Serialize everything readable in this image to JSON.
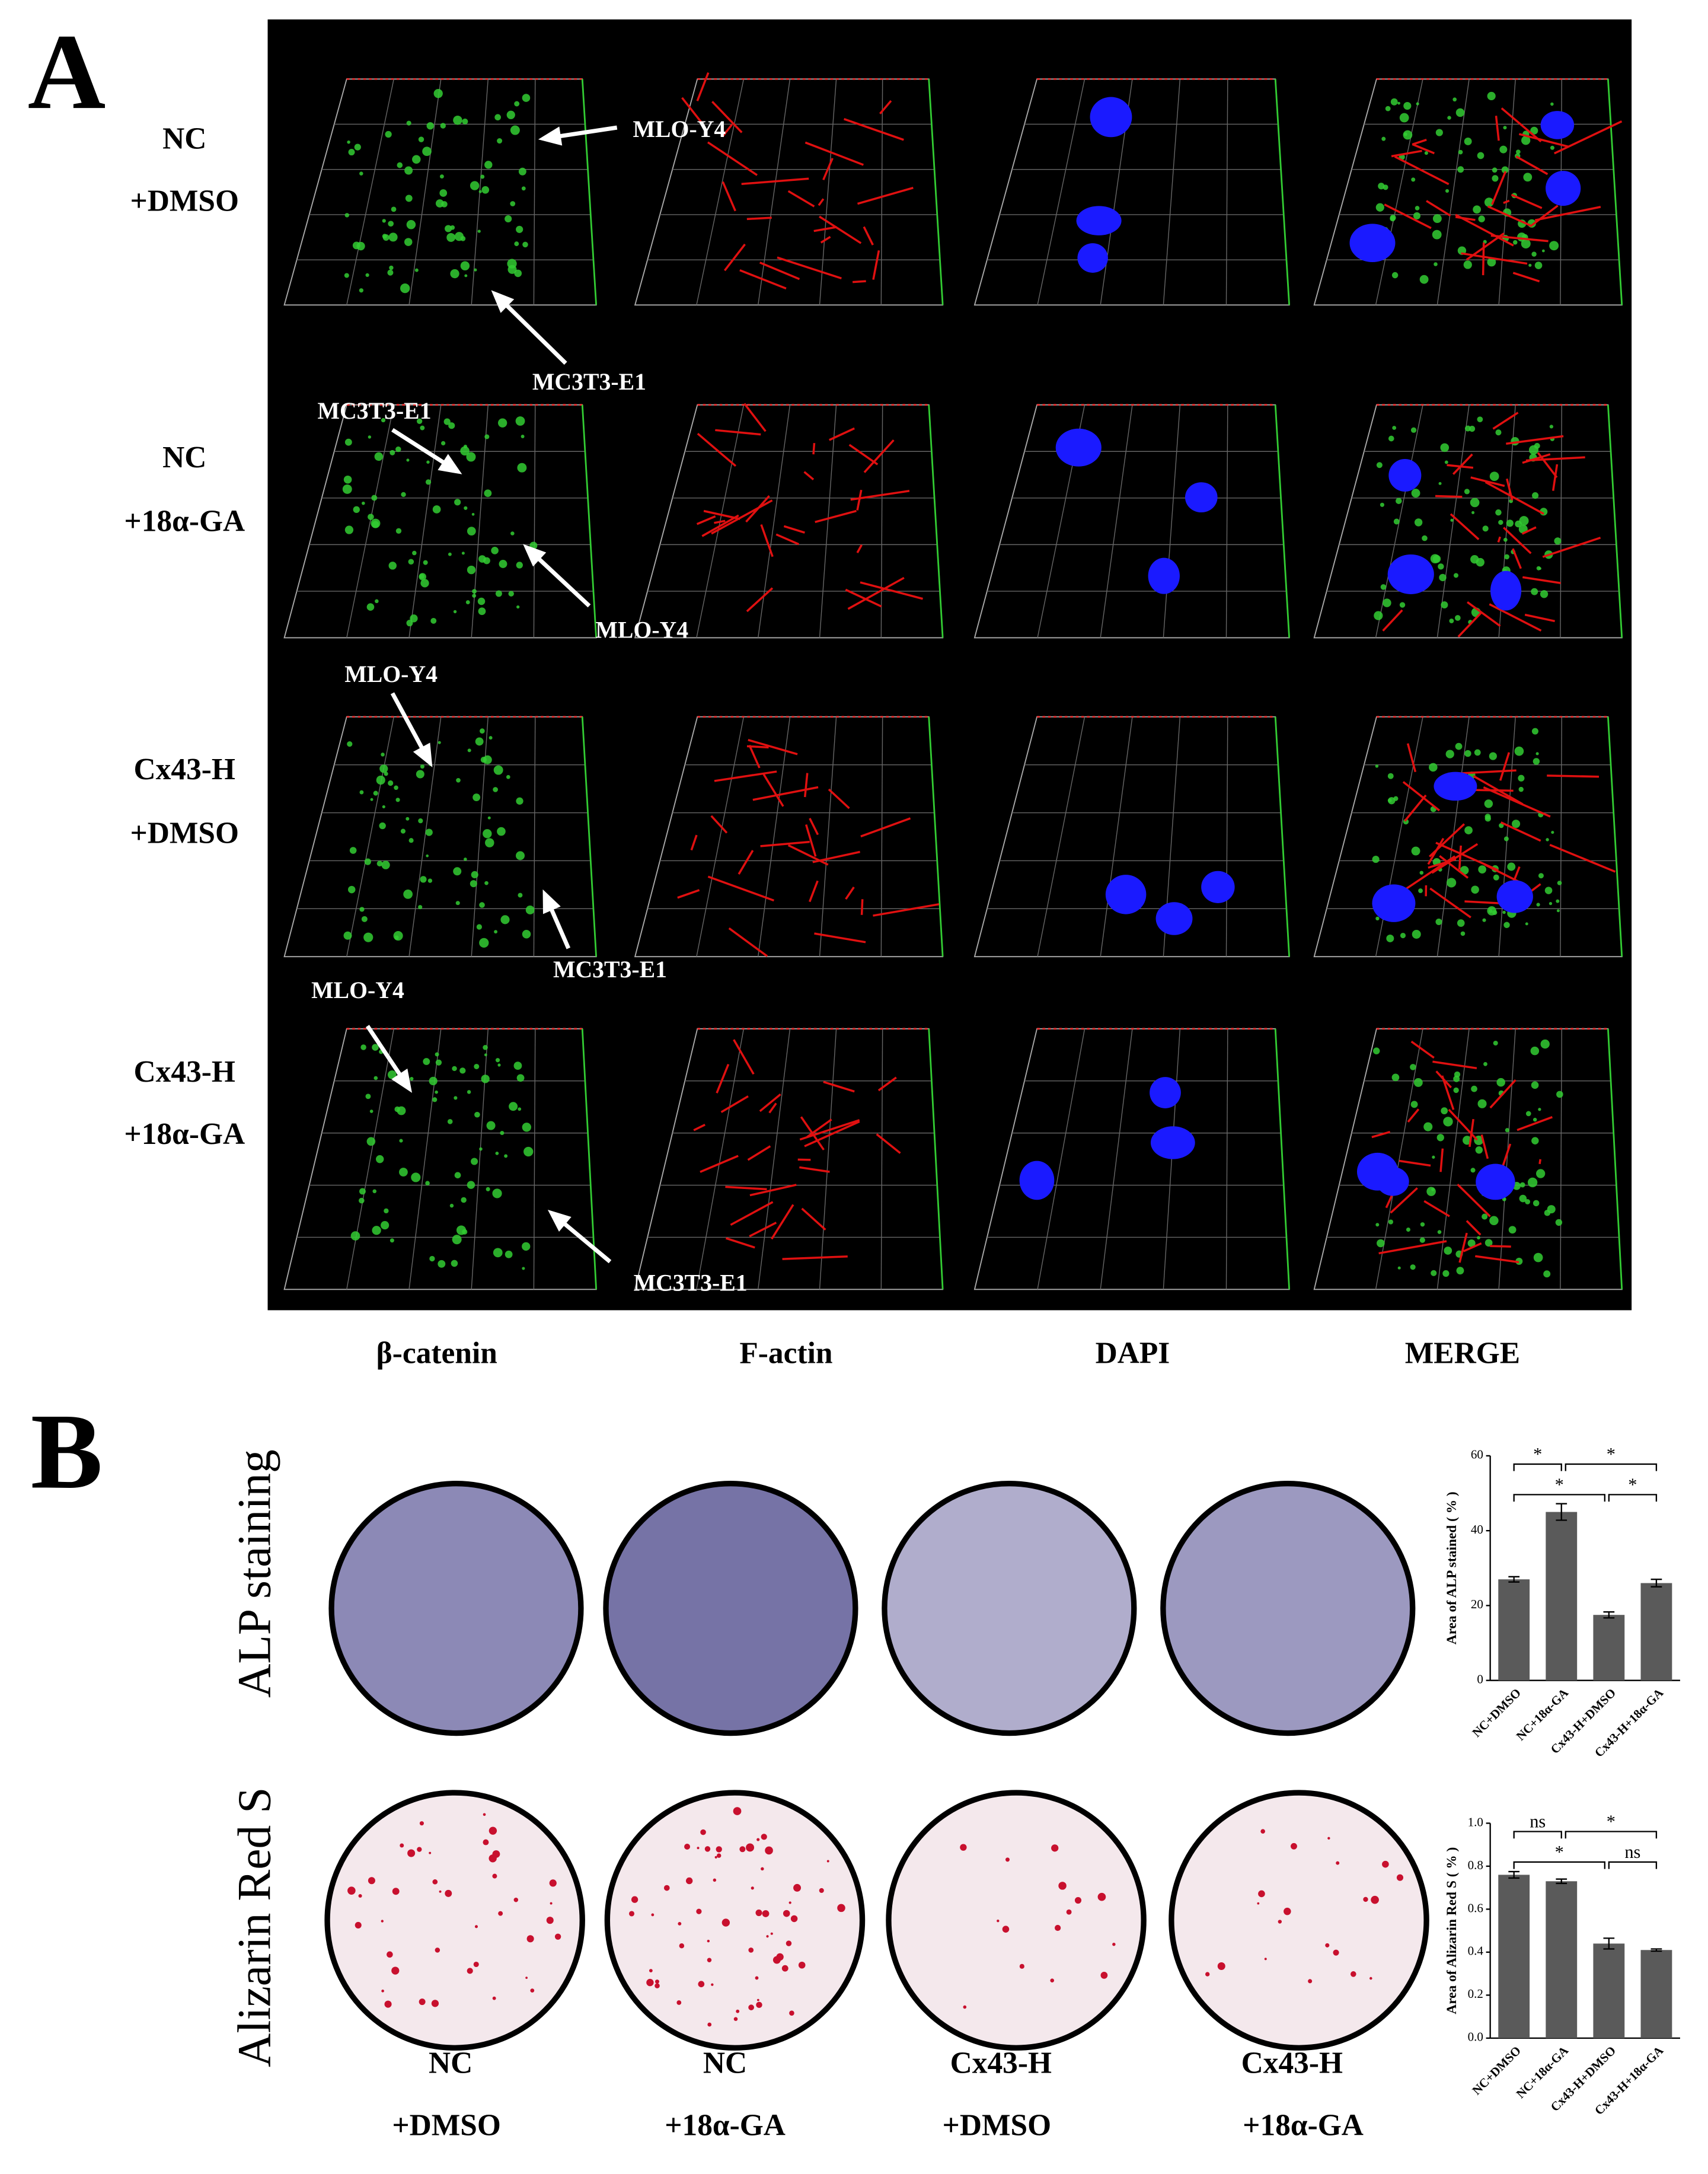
{
  "panel_a": {
    "label": "A",
    "row_labels": [
      [
        "NC",
        "+DMSO"
      ],
      [
        "NC",
        "+18α-GA"
      ],
      [
        "Cx43-H",
        "+DMSO"
      ],
      [
        "Cx43-H",
        "+18α-GA"
      ]
    ],
    "column_labels": [
      "β-catenin",
      "F-actin",
      "DAPI",
      "MERGE"
    ],
    "annotations": [
      "MLO-Y4",
      "MC3T3-E1",
      "MC3T3-E1",
      "MLO-Y4",
      "MLO-Y4",
      "MC3T3-E1",
      "MLO-Y4",
      "MC3T3-E1"
    ]
  },
  "panel_b": {
    "label": "B",
    "row_labels": [
      "ALP staining",
      "Alizarin Red S"
    ],
    "group_labels": [
      [
        "NC",
        "+DMSO"
      ],
      [
        "NC",
        "+18α-GA"
      ],
      [
        "Cx43-H",
        "+DMSO"
      ],
      [
        "Cx43-H",
        "+18α-GA"
      ]
    ]
  },
  "chart_data": [
    {
      "type": "bar",
      "y_label": "Area of ALP stained ( % )",
      "categories": [
        "NC+DMSO",
        "NC+18α-GA",
        "Cx43-H+DMSO",
        "Cx43-H+18α-GA"
      ],
      "values": [
        27,
        45,
        17.5,
        26
      ],
      "errors": [
        0.7,
        2.2,
        0.8,
        1
      ],
      "color": "#5a5a5a",
      "ylim": [
        0,
        60
      ],
      "yticks": [
        0,
        20,
        40,
        60
      ],
      "significance": [
        "*",
        "*",
        "*",
        "*"
      ]
    },
    {
      "type": "bar",
      "y_label": "Area of Alizarin Red S ( % )",
      "categories": [
        "NC+DMSO",
        "NC+18α-GA",
        "Cx43-H+DMSO",
        "Cx43-H+18α-GA"
      ],
      "values": [
        0.76,
        0.73,
        0.44,
        0.41
      ],
      "errors": [
        0.015,
        0.01,
        0.025,
        0.005
      ],
      "color": "#5a5a5a",
      "ylim": [
        0,
        1
      ],
      "yticks": [
        {
          "value": 0,
          "label": "0.0"
        },
        0.2,
        0.4,
        0.6,
        0.8,
        {
          "value": 1,
          "label": "1.0"
        }
      ],
      "significance": [
        "ns",
        "*",
        "*",
        "ns"
      ]
    }
  ]
}
